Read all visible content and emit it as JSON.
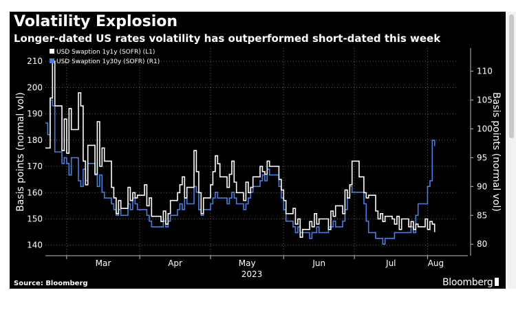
{
  "header": {
    "title": "Volatility Explosion",
    "subtitle": "Longer-dated US rates volatility has outperformed short-dated this week"
  },
  "footer": {
    "source": "Source: Bloomberg",
    "brand": "Bloomberg"
  },
  "chart_data": {
    "type": "line",
    "title": "Volatility Explosion",
    "subtitle": "Longer-dated US rates volatility has outperformed short-dated this week",
    "x_start": "2023-02-20",
    "x_end": "2023-08-14",
    "xlabel": "2023",
    "x_ticks": [
      {
        "label": "Mar",
        "date": "2023-03-01"
      },
      {
        "label": "Apr",
        "date": "2023-04-01"
      },
      {
        "label": "May",
        "date": "2023-05-01"
      },
      {
        "label": "Jun",
        "date": "2023-06-01"
      },
      {
        "label": "Jul",
        "date": "2023-07-01"
      },
      {
        "label": "Aug",
        "date": "2023-08-01"
      }
    ],
    "left_axis": {
      "label": "Basis points (normal vol)",
      "min": 136,
      "max": 215,
      "ticks": [
        140,
        150,
        160,
        170,
        180,
        190,
        200,
        210
      ]
    },
    "right_axis": {
      "label": "Basis points (normal vol)",
      "min": 78,
      "max": 114,
      "ticks": [
        80,
        85,
        90,
        95,
        100,
        105,
        110
      ]
    },
    "grid": true,
    "legend_position": "top-left",
    "series": [
      {
        "name": "USD Swaption 1y1y (SOFR) (L1)",
        "axis": "left",
        "color": "#ffffff",
        "points": [
          [
            "2023-02-20",
            177
          ],
          [
            "2023-02-22",
            196
          ],
          [
            "2023-02-23",
            210
          ],
          [
            "2023-02-24",
            193
          ],
          [
            "2023-02-27",
            176
          ],
          [
            "2023-02-28",
            188
          ],
          [
            "2023-03-01",
            175
          ],
          [
            "2023-03-02",
            192
          ],
          [
            "2023-03-03",
            184
          ],
          [
            "2023-03-06",
            198
          ],
          [
            "2023-03-07",
            193
          ],
          [
            "2023-03-08",
            172
          ],
          [
            "2023-03-09",
            163
          ],
          [
            "2023-03-10",
            178
          ],
          [
            "2023-03-13",
            167
          ],
          [
            "2023-03-14",
            187
          ],
          [
            "2023-03-15",
            170
          ],
          [
            "2023-03-16",
            177
          ],
          [
            "2023-03-17",
            172
          ],
          [
            "2023-03-20",
            162
          ],
          [
            "2023-03-21",
            158
          ],
          [
            "2023-03-22",
            152
          ],
          [
            "2023-03-23",
            157
          ],
          [
            "2023-03-24",
            154
          ],
          [
            "2023-03-27",
            162
          ],
          [
            "2023-03-28",
            157
          ],
          [
            "2023-03-29",
            160
          ],
          [
            "2023-03-30",
            158
          ],
          [
            "2023-03-31",
            159
          ],
          [
            "2023-04-03",
            163
          ],
          [
            "2023-04-04",
            155
          ],
          [
            "2023-04-05",
            158
          ],
          [
            "2023-04-06",
            151
          ],
          [
            "2023-04-10",
            149
          ],
          [
            "2023-04-11",
            153
          ],
          [
            "2023-04-12",
            148
          ],
          [
            "2023-04-13",
            152
          ],
          [
            "2023-04-14",
            157
          ],
          [
            "2023-04-17",
            160
          ],
          [
            "2023-04-18",
            163
          ],
          [
            "2023-04-19",
            166
          ],
          [
            "2023-04-20",
            158
          ],
          [
            "2023-04-21",
            162
          ],
          [
            "2023-04-24",
            176
          ],
          [
            "2023-04-25",
            168
          ],
          [
            "2023-04-26",
            160
          ],
          [
            "2023-04-27",
            152
          ],
          [
            "2023-04-28",
            158
          ],
          [
            "2023-05-01",
            163
          ],
          [
            "2023-05-02",
            168
          ],
          [
            "2023-05-03",
            174
          ],
          [
            "2023-05-04",
            171
          ],
          [
            "2023-05-05",
            166
          ],
          [
            "2023-05-08",
            162
          ],
          [
            "2023-05-09",
            167
          ],
          [
            "2023-05-10",
            172
          ],
          [
            "2023-05-11",
            164
          ],
          [
            "2023-05-12",
            160
          ],
          [
            "2023-05-15",
            157
          ],
          [
            "2023-05-16",
            164
          ],
          [
            "2023-05-17",
            160
          ],
          [
            "2023-05-18",
            162
          ],
          [
            "2023-05-19",
            166
          ],
          [
            "2023-05-22",
            170
          ],
          [
            "2023-05-23",
            168
          ],
          [
            "2023-05-24",
            167
          ],
          [
            "2023-05-25",
            172
          ],
          [
            "2023-05-26",
            170
          ],
          [
            "2023-05-30",
            165
          ],
          [
            "2023-05-31",
            161
          ],
          [
            "2023-06-01",
            157
          ],
          [
            "2023-06-02",
            152
          ],
          [
            "2023-06-05",
            154
          ],
          [
            "2023-06-06",
            148
          ],
          [
            "2023-06-07",
            150
          ],
          [
            "2023-06-08",
            143
          ],
          [
            "2023-06-09",
            146
          ],
          [
            "2023-06-12",
            149
          ],
          [
            "2023-06-13",
            147
          ],
          [
            "2023-06-14",
            152
          ],
          [
            "2023-06-15",
            148
          ],
          [
            "2023-06-16",
            150
          ],
          [
            "2023-06-20",
            146
          ],
          [
            "2023-06-21",
            153
          ],
          [
            "2023-06-22",
            151
          ],
          [
            "2023-06-23",
            155
          ],
          [
            "2023-06-26",
            152
          ],
          [
            "2023-06-27",
            161
          ],
          [
            "2023-06-28",
            158
          ],
          [
            "2023-06-29",
            163
          ],
          [
            "2023-06-30",
            172
          ],
          [
            "2023-07-03",
            166
          ],
          [
            "2023-07-05",
            160
          ],
          [
            "2023-07-06",
            158
          ],
          [
            "2023-07-07",
            159
          ],
          [
            "2023-07-10",
            153
          ],
          [
            "2023-07-11",
            150
          ],
          [
            "2023-07-12",
            152
          ],
          [
            "2023-07-13",
            149
          ],
          [
            "2023-07-14",
            151
          ],
          [
            "2023-07-17",
            150
          ],
          [
            "2023-07-18",
            148
          ],
          [
            "2023-07-19",
            151
          ],
          [
            "2023-07-20",
            146
          ],
          [
            "2023-07-21",
            150
          ],
          [
            "2023-07-24",
            147
          ],
          [
            "2023-07-25",
            149
          ],
          [
            "2023-07-26",
            146
          ],
          [
            "2023-07-27",
            148
          ],
          [
            "2023-07-28",
            147
          ],
          [
            "2023-07-31",
            150
          ],
          [
            "2023-08-01",
            146
          ],
          [
            "2023-08-02",
            149
          ],
          [
            "2023-08-03",
            148
          ],
          [
            "2023-08-04",
            145
          ]
        ]
      },
      {
        "name": "USD Swaption 1y30y (SOFR) (R1)",
        "axis": "right",
        "color": "#4a7fe0",
        "points": [
          [
            "2023-02-20",
            101
          ],
          [
            "2023-02-21",
            99
          ],
          [
            "2023-02-22",
            105
          ],
          [
            "2023-02-23",
            104
          ],
          [
            "2023-02-24",
            96
          ],
          [
            "2023-02-27",
            94
          ],
          [
            "2023-02-28",
            95
          ],
          [
            "2023-03-01",
            94
          ],
          [
            "2023-03-02",
            92
          ],
          [
            "2023-03-03",
            95
          ],
          [
            "2023-03-06",
            91
          ],
          [
            "2023-03-07",
            90
          ],
          [
            "2023-03-08",
            93
          ],
          [
            "2023-03-09",
            91
          ],
          [
            "2023-03-10",
            94
          ],
          [
            "2023-03-13",
            92
          ],
          [
            "2023-03-14",
            90
          ],
          [
            "2023-03-15",
            92
          ],
          [
            "2023-03-16",
            89
          ],
          [
            "2023-03-17",
            88
          ],
          [
            "2023-03-20",
            87
          ],
          [
            "2023-03-21",
            86
          ],
          [
            "2023-03-22",
            85
          ],
          [
            "2023-03-23",
            86
          ],
          [
            "2023-03-24",
            85
          ],
          [
            "2023-03-27",
            87
          ],
          [
            "2023-03-28",
            86
          ],
          [
            "2023-03-29",
            88
          ],
          [
            "2023-03-30",
            87
          ],
          [
            "2023-03-31",
            86
          ],
          [
            "2023-04-03",
            86
          ],
          [
            "2023-04-04",
            85
          ],
          [
            "2023-04-05",
            84
          ],
          [
            "2023-04-06",
            83
          ],
          [
            "2023-04-10",
            83
          ],
          [
            "2023-04-11",
            84
          ],
          [
            "2023-04-12",
            83
          ],
          [
            "2023-04-13",
            84
          ],
          [
            "2023-04-14",
            85
          ],
          [
            "2023-04-17",
            86
          ],
          [
            "2023-04-18",
            87
          ],
          [
            "2023-04-19",
            86
          ],
          [
            "2023-04-20",
            88
          ],
          [
            "2023-04-21",
            87
          ],
          [
            "2023-04-24",
            90
          ],
          [
            "2023-04-25",
            89
          ],
          [
            "2023-04-26",
            86
          ],
          [
            "2023-04-27",
            85
          ],
          [
            "2023-04-28",
            86
          ],
          [
            "2023-05-01",
            87
          ],
          [
            "2023-05-02",
            88
          ],
          [
            "2023-05-03",
            89
          ],
          [
            "2023-05-04",
            88
          ],
          [
            "2023-05-05",
            88
          ],
          [
            "2023-05-08",
            87
          ],
          [
            "2023-05-09",
            88
          ],
          [
            "2023-05-10",
            89
          ],
          [
            "2023-05-11",
            88
          ],
          [
            "2023-05-12",
            87
          ],
          [
            "2023-05-15",
            86
          ],
          [
            "2023-05-16",
            87
          ],
          [
            "2023-05-17",
            88
          ],
          [
            "2023-05-18",
            89
          ],
          [
            "2023-05-19",
            90
          ],
          [
            "2023-05-22",
            91
          ],
          [
            "2023-05-23",
            92
          ],
          [
            "2023-05-24",
            91
          ],
          [
            "2023-05-25",
            93
          ],
          [
            "2023-05-26",
            92
          ],
          [
            "2023-05-30",
            90
          ],
          [
            "2023-05-31",
            88
          ],
          [
            "2023-06-01",
            86
          ],
          [
            "2023-06-02",
            84
          ],
          [
            "2023-06-05",
            83
          ],
          [
            "2023-06-06",
            82
          ],
          [
            "2023-06-07",
            83
          ],
          [
            "2023-06-08",
            82
          ],
          [
            "2023-06-09",
            82
          ],
          [
            "2023-06-12",
            81
          ],
          [
            "2023-06-13",
            82
          ],
          [
            "2023-06-14",
            82
          ],
          [
            "2023-06-15",
            83
          ],
          [
            "2023-06-16",
            82
          ],
          [
            "2023-06-20",
            83
          ],
          [
            "2023-06-21",
            83
          ],
          [
            "2023-06-22",
            84
          ],
          [
            "2023-06-23",
            83
          ],
          [
            "2023-06-26",
            84
          ],
          [
            "2023-06-27",
            86
          ],
          [
            "2023-06-28",
            88
          ],
          [
            "2023-06-29",
            90
          ],
          [
            "2023-06-30",
            89
          ],
          [
            "2023-07-03",
            89
          ],
          [
            "2023-07-05",
            87
          ],
          [
            "2023-07-06",
            84
          ],
          [
            "2023-07-07",
            82
          ],
          [
            "2023-07-10",
            81
          ],
          [
            "2023-07-11",
            81
          ],
          [
            "2023-07-12",
            81
          ],
          [
            "2023-07-13",
            80
          ],
          [
            "2023-07-14",
            81
          ],
          [
            "2023-07-17",
            81
          ],
          [
            "2023-07-18",
            82
          ],
          [
            "2023-07-19",
            82
          ],
          [
            "2023-07-20",
            82
          ],
          [
            "2023-07-21",
            82
          ],
          [
            "2023-07-24",
            82
          ],
          [
            "2023-07-25",
            83
          ],
          [
            "2023-07-26",
            82
          ],
          [
            "2023-07-27",
            85
          ],
          [
            "2023-07-28",
            87
          ],
          [
            "2023-07-31",
            87
          ],
          [
            "2023-08-01",
            90
          ],
          [
            "2023-08-02",
            91
          ],
          [
            "2023-08-03",
            98
          ],
          [
            "2023-08-04",
            97
          ]
        ]
      }
    ]
  }
}
